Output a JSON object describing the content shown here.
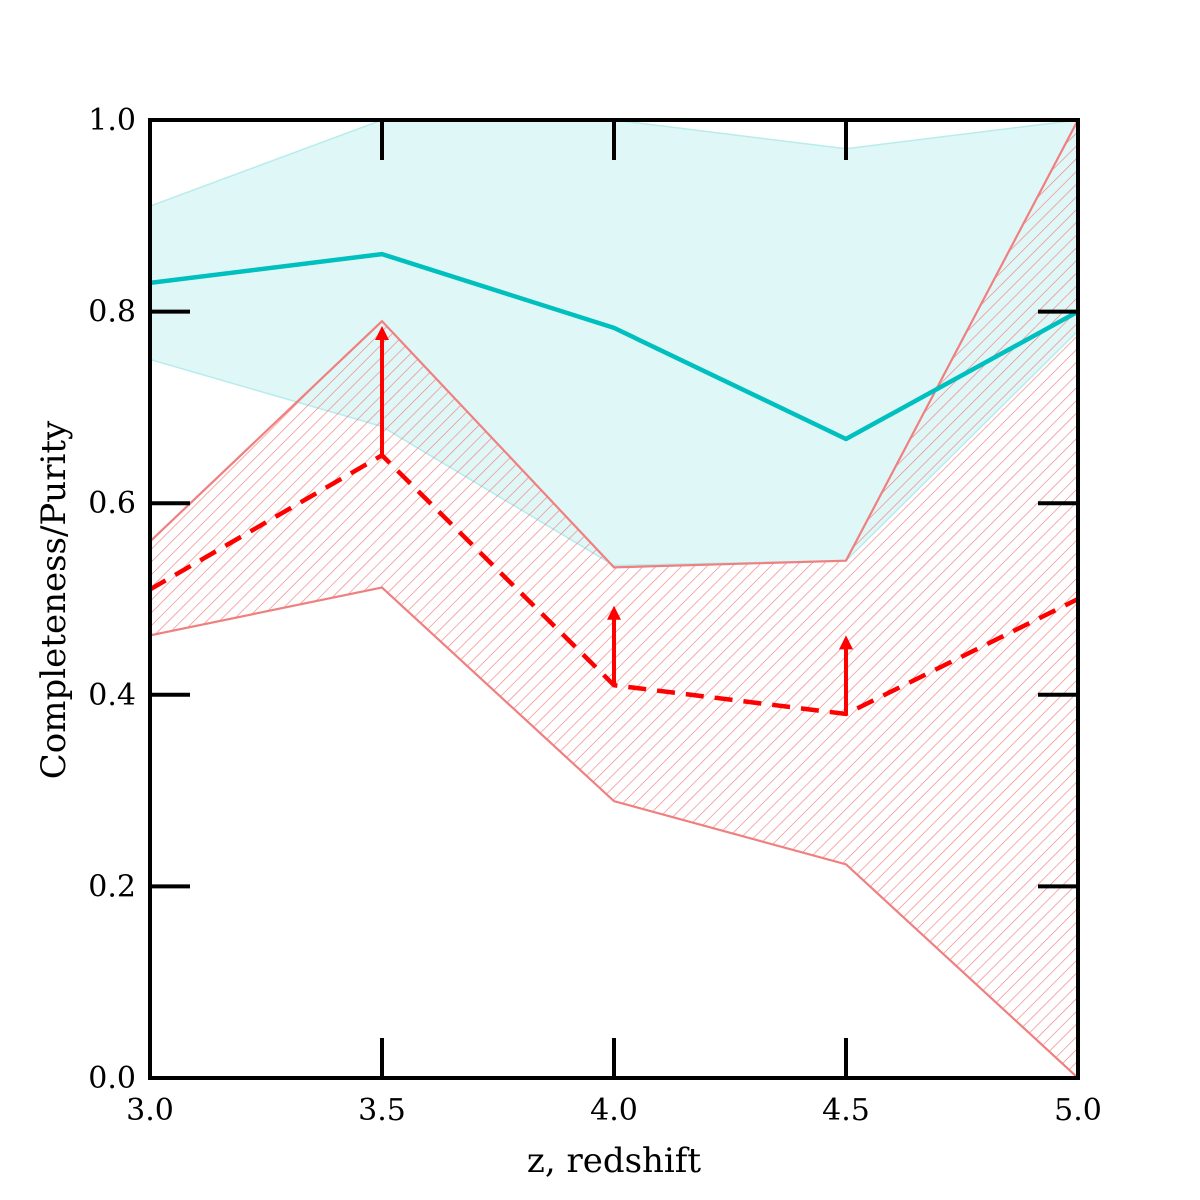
{
  "chart_data": {
    "type": "line",
    "title": "",
    "xlabel": "z, redshift",
    "ylabel": "Completeness/Purity",
    "xlim": [
      3.0,
      5.0
    ],
    "ylim": [
      0.0,
      1.0
    ],
    "grid": false,
    "x_ticks": [
      3.0,
      3.5,
      4.0,
      4.5,
      5.0
    ],
    "x_tick_labels": [
      "3.0",
      "3.5",
      "4.0",
      "4.5",
      "5.0"
    ],
    "y_ticks": [
      0.0,
      0.2,
      0.4,
      0.6,
      0.8,
      1.0
    ],
    "y_tick_labels": [
      "0.0",
      "0.2",
      "0.4",
      "0.6",
      "0.8",
      "1.0"
    ],
    "x": [
      3.0,
      3.5,
      4.0,
      4.5,
      5.0
    ],
    "series": [
      {
        "name": "Completeness",
        "style": "solid",
        "color": "#00bfbf",
        "values": [
          0.83,
          0.86,
          0.783,
          0.667,
          0.8
        ],
        "band_upper": [
          0.91,
          1.0,
          1.0,
          0.97,
          1.0
        ],
        "band_lower": [
          0.75,
          0.68,
          0.535,
          0.54,
          0.78
        ],
        "band_color": "#e0f7f7"
      },
      {
        "name": "Purity",
        "style": "dashed",
        "color": "#ff0000",
        "values": [
          0.51,
          0.65,
          0.41,
          0.38,
          0.5
        ],
        "band_upper": [
          0.56,
          0.79,
          0.533,
          0.54,
          1.0
        ],
        "band_lower": [
          0.462,
          0.512,
          0.289,
          0.223,
          0.0
        ],
        "band_color": "#f08080",
        "band_hatch": true,
        "lower_limit_arrows": [
          {
            "x": 3.5,
            "from": 0.65,
            "to": 0.785
          },
          {
            "x": 4.0,
            "from": 0.41,
            "to": 0.493
          },
          {
            "x": 4.5,
            "from": 0.38,
            "to": 0.462
          }
        ]
      }
    ]
  }
}
